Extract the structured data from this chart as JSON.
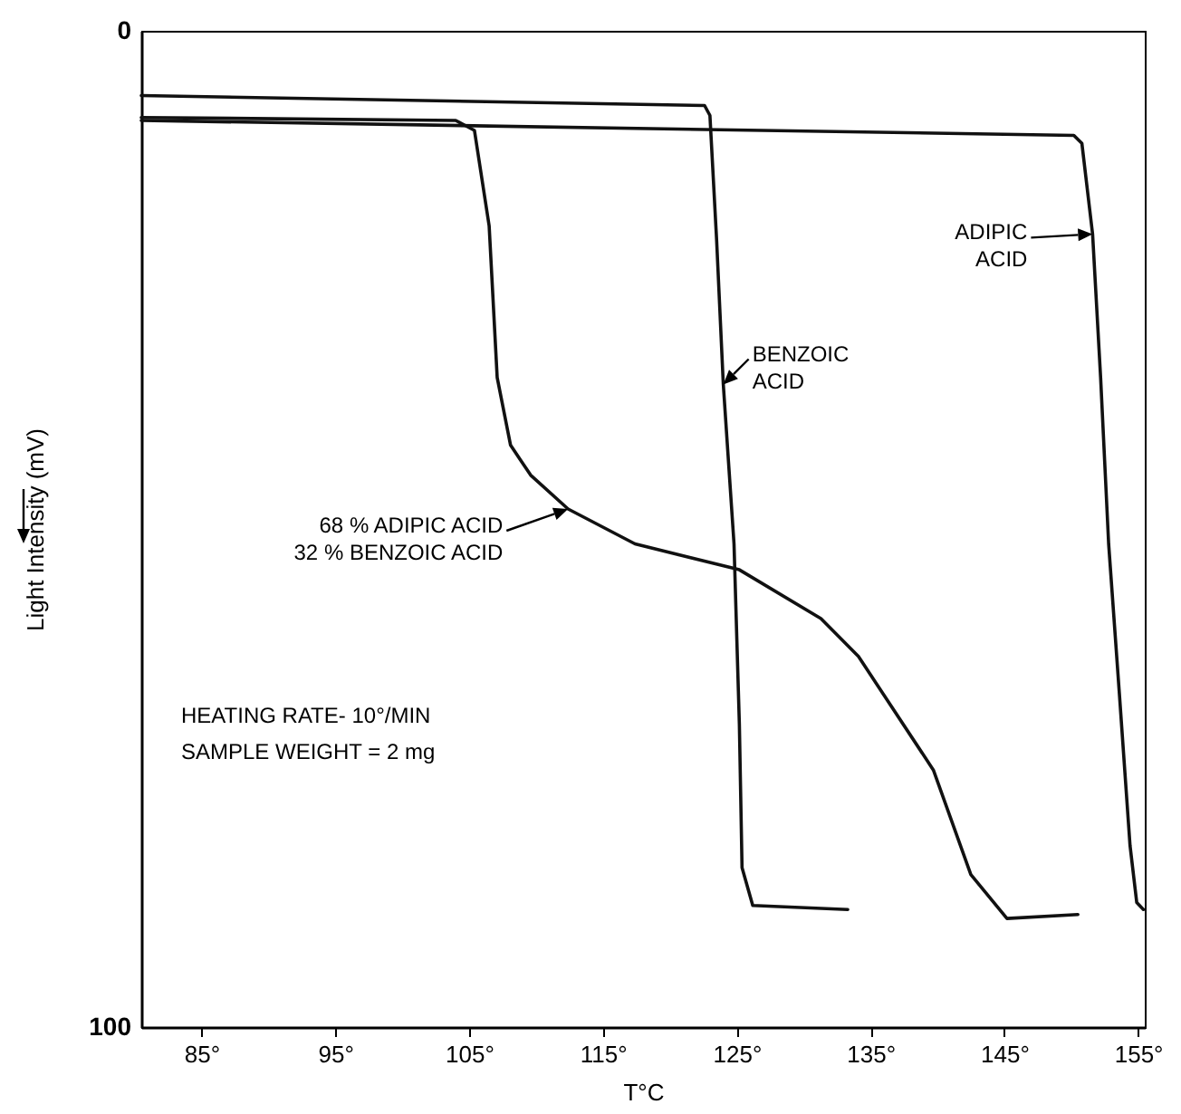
{
  "chart_data": {
    "type": "line",
    "xlabel": "T°C",
    "ylabel": "Light Intensity (mV)",
    "xlim": [
      80.5,
      155.5
    ],
    "ylim": [
      100,
      0
    ],
    "xticks": [
      {
        "value": 85,
        "label": "85°"
      },
      {
        "value": 95,
        "label": "95°"
      },
      {
        "value": 105,
        "label": "105°"
      },
      {
        "value": 115,
        "label": "115°"
      },
      {
        "value": 125,
        "label": "125°"
      },
      {
        "value": 135,
        "label": "135°"
      },
      {
        "value": 145,
        "label": "145°"
      },
      {
        "value": 155,
        "label": "155°"
      }
    ],
    "yticks": [
      0,
      100
    ],
    "grid": false,
    "marker": "none",
    "line_style": "solid",
    "series": [
      {
        "name": "ADIPIC\nACID",
        "color": "#111111",
        "x": [
          80.5,
          150.2,
          150.8,
          151.6,
          152.2,
          152.8,
          153.6,
          154.4,
          154.9,
          155.4
        ],
        "values": [
          9.0,
          10.5,
          11.3,
          20.4,
          34.8,
          51.5,
          66.5,
          81.8,
          87.5,
          88.2
        ]
      },
      {
        "name": "BENZOIC\nACID",
        "color": "#111111",
        "x": [
          80.5,
          122.6,
          123.0,
          123.5,
          124.0,
          124.8,
          125.2,
          125.4,
          126.2,
          133.3
        ],
        "values": [
          6.5,
          7.5,
          8.5,
          21.0,
          35.5,
          51.5,
          69.6,
          84.0,
          87.8,
          88.2
        ]
      },
      {
        "name": "68 % ADIPIC ACID\n32 % BENZOIC ACID",
        "color": "#111111",
        "x": [
          80.5,
          104.0,
          105.4,
          106.5,
          107.1,
          108.1,
          109.6,
          112.4,
          117.4,
          125.2,
          131.3,
          134.1,
          139.7,
          142.5,
          145.2,
          150.5
        ],
        "values": [
          8.7,
          9.0,
          10.0,
          19.6,
          34.8,
          41.6,
          44.6,
          48.0,
          51.5,
          54.1,
          59.0,
          62.8,
          74.2,
          84.7,
          89.1,
          88.7
        ]
      }
    ],
    "annotations": [
      "HEATING RATE- 10°/MIN",
      "SAMPLE WEIGHT = 2 mg"
    ]
  }
}
